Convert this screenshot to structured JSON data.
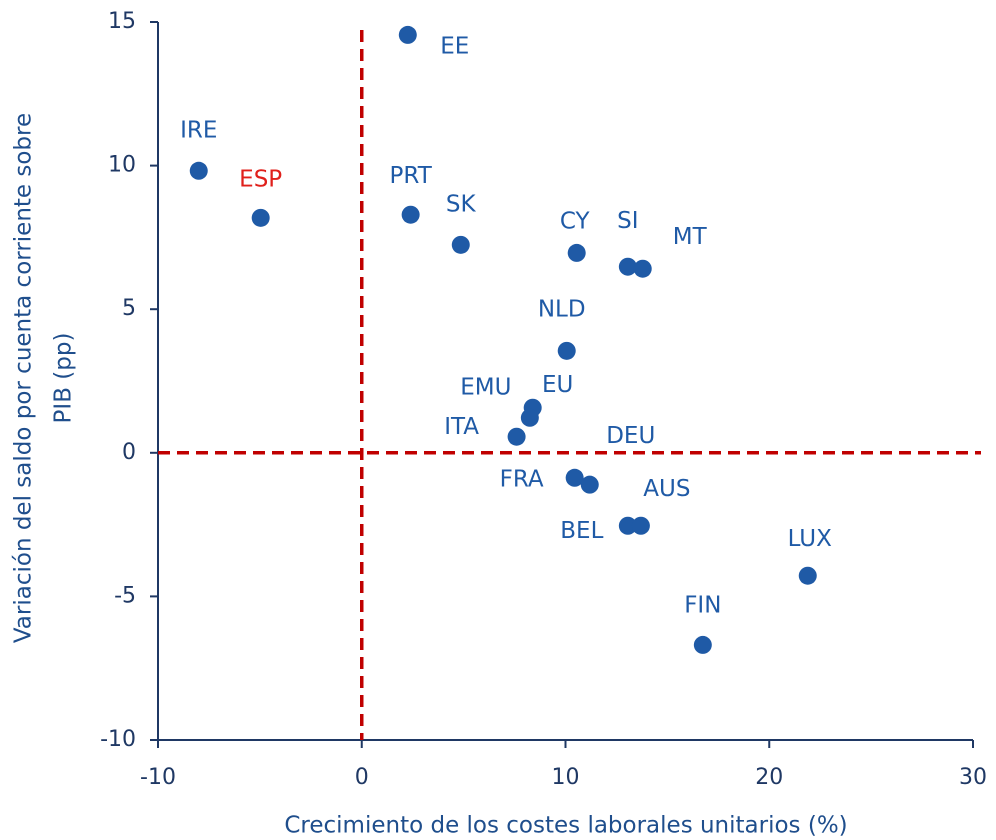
{
  "chart_data": {
    "type": "scatter",
    "x_label": "Crecimiento de los costes laborales unitarios (%)",
    "y_label": [
      "Variación del saldo por cuenta corriente sobre",
      "PIB (pp)"
    ],
    "labels": [
      "EE",
      "IRE",
      "ESP",
      "PRT",
      "SK",
      "CY",
      "SI",
      "MT",
      "NLD",
      "EU",
      "EMU",
      "ITA",
      "FRA",
      "DEU",
      "BEL",
      "AUS",
      "LUX",
      "FIN"
    ],
    "x": [
      2.26,
      -8.0,
      -4.96,
      2.4,
      4.86,
      10.55,
      13.06,
      13.79,
      10.06,
      8.39,
      8.25,
      7.6,
      10.45,
      11.19,
      13.06,
      13.7,
      21.89,
      16.74
    ],
    "y": [
      14.55,
      9.82,
      8.18,
      8.29,
      7.24,
      6.96,
      6.48,
      6.41,
      3.55,
      1.57,
      1.22,
      0.56,
      -0.87,
      -1.11,
      -2.54,
      -2.54,
      -4.28,
      -6.69
    ],
    "color": "#1f5aa6",
    "label_colors": [
      "#1f5aa6",
      "#1f5aa6",
      "#e0201b",
      "#1f5aa6",
      "#1f5aa6",
      "#1f5aa6",
      "#1f5aa6",
      "#1f5aa6",
      "#1f5aa6",
      "#1f5aa6",
      "#1f5aa6",
      "#1f5aa6",
      "#1f5aa6",
      "#1f5aa6",
      "#1f5aa6",
      "#1f5aa6",
      "#1f5aa6",
      "#1f5aa6"
    ],
    "xlim": [
      -10,
      30
    ],
    "xticks": [
      -10,
      0,
      10,
      20,
      30
    ],
    "ylim": [
      -10,
      15
    ],
    "yticks": [
      -10,
      -5,
      0,
      5,
      10,
      15
    ],
    "reference_lines": {
      "x": 0,
      "y": 0,
      "color": "#c00000"
    },
    "grid": false
  }
}
